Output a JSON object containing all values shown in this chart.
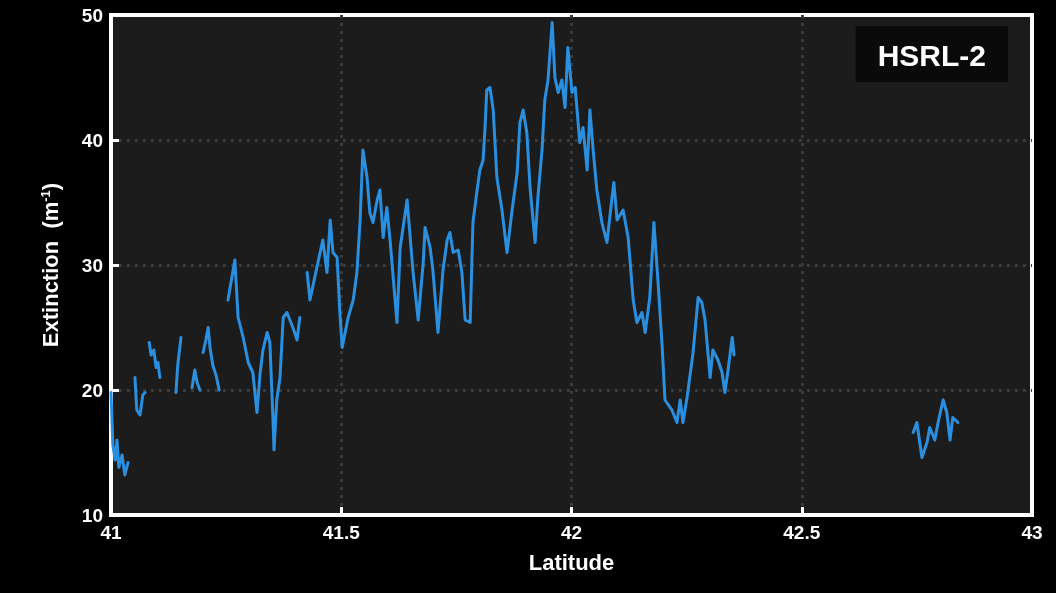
{
  "chart_data": {
    "type": "line",
    "xlabel": "Latitude",
    "ylabel": "Extinction  (m$^{-1}$)",
    "annotations": [
      "HSRL-2"
    ],
    "xlim": [
      41,
      43
    ],
    "xticks": [
      41,
      41.5,
      42,
      42.5,
      43
    ],
    "ylim": [
      10,
      50
    ],
    "yticks": [
      10,
      20,
      30,
      40,
      50
    ],
    "grid": true,
    "marker": "none",
    "line_style": "solid",
    "series": [
      {
        "color": "#2b8fe0",
        "x": [
          41.0,
          41.004,
          41.009,
          41.013,
          41.017,
          41.024,
          41.03,
          41.037,
          41.045,
          41.052,
          41.056,
          41.063,
          41.069,
          41.074,
          41.078,
          41.083,
          41.087,
          41.093,
          41.098,
          41.102,
          41.106,
          41.12,
          41.141,
          41.145,
          41.152,
          41.165,
          41.176,
          41.182,
          41.187,
          41.193,
          41.197,
          41.2,
          41.206,
          41.211,
          41.215,
          41.221,
          41.228,
          41.235,
          41.245,
          41.254,
          41.269,
          41.276,
          41.287,
          41.298,
          41.308,
          41.317,
          41.324,
          41.33,
          41.339,
          41.345,
          41.352,
          41.354,
          41.36,
          41.367,
          41.374,
          41.382,
          41.395,
          41.404,
          41.41,
          41.418,
          41.426,
          41.432,
          41.447,
          41.46,
          41.469,
          41.476,
          41.482,
          41.491,
          41.497,
          41.502,
          41.515,
          41.526,
          41.534,
          41.541,
          41.547,
          41.556,
          41.562,
          41.569,
          41.578,
          41.584,
          41.591,
          41.599,
          41.606,
          41.621,
          41.628,
          41.643,
          41.656,
          41.667,
          41.678,
          41.682,
          41.693,
          41.699,
          41.71,
          41.721,
          41.73,
          41.736,
          41.743,
          41.754,
          41.762,
          41.769,
          41.78,
          41.786,
          41.795,
          41.801,
          41.808,
          41.812,
          41.816,
          41.823,
          41.83,
          41.838,
          41.849,
          41.86,
          41.871,
          41.882,
          41.888,
          41.895,
          41.903,
          41.91,
          41.921,
          41.927,
          41.936,
          41.942,
          41.949,
          41.958,
          41.964,
          41.971,
          41.979,
          41.986,
          41.992,
          42.001,
          42.008,
          42.018,
          42.025,
          42.034,
          42.04,
          42.047,
          42.055,
          42.066,
          42.077,
          42.088,
          42.092,
          42.099,
          42.112,
          42.123,
          42.134,
          42.142,
          42.153,
          42.16,
          42.17,
          42.179,
          42.188,
          42.197,
          42.203,
          42.218,
          42.229,
          42.236,
          42.242,
          42.251,
          42.264,
          42.275,
          42.283,
          42.29,
          42.301,
          42.307,
          42.318,
          42.327,
          42.333,
          42.34,
          42.349,
          42.353,
          42.55,
          42.742,
          42.75,
          42.761,
          42.772,
          42.778,
          42.789,
          42.796,
          42.807,
          42.815,
          42.822,
          42.828,
          42.839
        ],
        "values": [
          19.8,
          15.6,
          14.4,
          16.0,
          13.8,
          14.8,
          13.2,
          14.2,
          null,
          21.0,
          18.4,
          18.0,
          19.6,
          19.8,
          null,
          23.8,
          22.8,
          23.2,
          21.8,
          22.2,
          21.0,
          null,
          19.8,
          22.0,
          24.2,
          null,
          20.2,
          21.6,
          20.6,
          20.0,
          null,
          23.0,
          24.0,
          25.0,
          23.4,
          22.0,
          21.2,
          20.0,
          null,
          27.2,
          30.4,
          25.8,
          24.2,
          22.2,
          21.4,
          18.2,
          21.4,
          23.2,
          24.6,
          23.8,
          17.4,
          15.2,
          19.2,
          21.0,
          25.8,
          26.2,
          25.0,
          24.0,
          25.8,
          null,
          29.4,
          27.2,
          29.8,
          32.0,
          29.4,
          33.6,
          31.0,
          30.6,
          26.2,
          23.4,
          25.8,
          27.2,
          29.4,
          33.6,
          39.2,
          37.0,
          34.2,
          33.4,
          35.2,
          36.0,
          32.2,
          34.6,
          32.0,
          25.4,
          31.4,
          35.2,
          29.4,
          25.6,
          30.2,
          33.0,
          31.4,
          29.6,
          24.6,
          29.6,
          32.0,
          32.6,
          31.0,
          31.2,
          29.4,
          25.6,
          25.4,
          33.4,
          36.0,
          37.6,
          38.4,
          40.8,
          44.0,
          44.2,
          42.4,
          37.0,
          34.4,
          31.0,
          34.4,
          37.4,
          41.4,
          42.4,
          40.6,
          36.2,
          31.8,
          35.4,
          39.2,
          43.2,
          44.8,
          49.4,
          45.0,
          43.8,
          44.8,
          42.6,
          47.4,
          43.8,
          44.2,
          39.8,
          41.0,
          37.6,
          42.4,
          39.2,
          36.0,
          33.4,
          31.8,
          35.4,
          36.6,
          33.6,
          34.4,
          32.2,
          27.2,
          25.4,
          26.2,
          24.6,
          27.4,
          33.4,
          28.6,
          23.4,
          19.2,
          18.4,
          17.4,
          19.2,
          17.4,
          19.4,
          23.0,
          27.4,
          27.0,
          25.6,
          21.0,
          23.2,
          22.4,
          21.4,
          19.8,
          21.6,
          24.2,
          22.8,
          null,
          16.6,
          17.4,
          14.6,
          15.8,
          17.0,
          16.0,
          17.4,
          19.2,
          18.2,
          16.0,
          17.8,
          17.4
        ]
      }
    ]
  }
}
